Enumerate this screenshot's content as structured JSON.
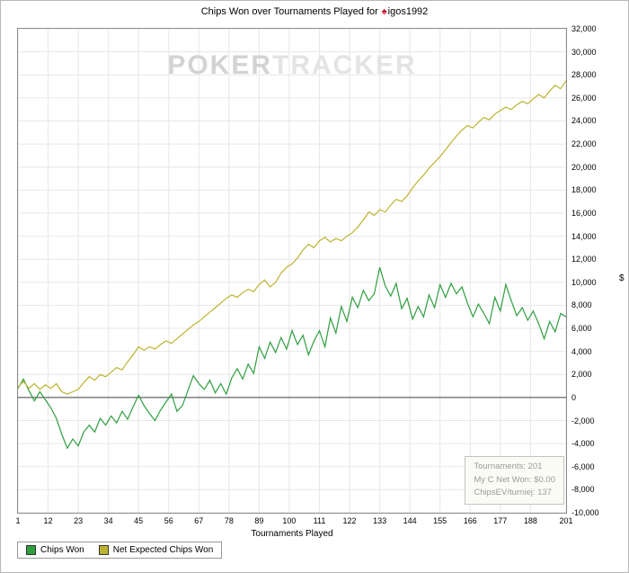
{
  "title": {
    "text": "Chips Won over Tournaments Played for",
    "logo_glyph": "♠",
    "player": "igos1992"
  },
  "watermark": {
    "poker": "POKER",
    "tracker": "TRACKER"
  },
  "axes": {
    "x_title": "Tournaments Played",
    "y_title": "$"
  },
  "stats_box": {
    "tournaments": "Tournaments: 201",
    "net_won": "My C Net Won: $0.00",
    "chips_ev": "ChipsEV/turniej: 137"
  },
  "colors": {
    "grid": "#e7e7e7",
    "zero_line": "#3c3c3c",
    "plot_border": "#8a8a8a",
    "chips_won": "#2f9e3f",
    "net_expected": "#bdb32e",
    "logo_red": "#c8102e",
    "stats_text": "#9a9a9a"
  },
  "chart_data": {
    "type": "line",
    "title": "Chips Won over Tournaments Played for igos1992",
    "xlabel": "Tournaments Played",
    "ylabel": "$",
    "grid": true,
    "legend_position": "bottom-left",
    "xlim": [
      1,
      201
    ],
    "ylim": [
      -10000,
      32000
    ],
    "ytick_step": 2000,
    "xticks": [
      1,
      12,
      23,
      34,
      45,
      56,
      67,
      78,
      89,
      100,
      111,
      122,
      133,
      144,
      155,
      166,
      177,
      188,
      201
    ],
    "x": [
      1,
      3,
      5,
      7,
      9,
      11,
      13,
      15,
      17,
      19,
      21,
      23,
      25,
      27,
      29,
      31,
      33,
      35,
      37,
      39,
      41,
      43,
      45,
      47,
      49,
      51,
      53,
      55,
      57,
      59,
      61,
      63,
      65,
      67,
      69,
      71,
      73,
      75,
      77,
      79,
      81,
      83,
      85,
      87,
      89,
      91,
      93,
      95,
      97,
      99,
      101,
      103,
      105,
      107,
      109,
      111,
      113,
      115,
      117,
      119,
      121,
      123,
      125,
      127,
      129,
      131,
      133,
      135,
      137,
      139,
      141,
      143,
      145,
      147,
      149,
      151,
      153,
      155,
      157,
      159,
      161,
      163,
      165,
      167,
      169,
      171,
      173,
      175,
      177,
      179,
      181,
      183,
      185,
      187,
      189,
      191,
      193,
      195,
      197,
      199,
      201
    ],
    "series": [
      {
        "name": "Chips Won",
        "color": "#2f9e3f",
        "values": [
          800,
          1600,
          600,
          -300,
          500,
          -200,
          -900,
          -1800,
          -3200,
          -4400,
          -3600,
          -4200,
          -3000,
          -2400,
          -3000,
          -1800,
          -2400,
          -1600,
          -2200,
          -1200,
          -1900,
          -800,
          200,
          -700,
          -1400,
          -2000,
          -1100,
          -400,
          300,
          -1200,
          -700,
          600,
          1900,
          1200,
          700,
          1500,
          400,
          1200,
          300,
          1700,
          2500,
          1600,
          2900,
          2100,
          4400,
          3400,
          4800,
          3900,
          5200,
          4200,
          5800,
          4600,
          5400,
          3700,
          4900,
          5800,
          4400,
          6900,
          5600,
          7900,
          6600,
          8700,
          7800,
          9300,
          8400,
          9000,
          11300,
          9700,
          8800,
          9900,
          7700,
          8600,
          6800,
          7900,
          7000,
          8900,
          7800,
          9800,
          8700,
          9900,
          9000,
          9600,
          8200,
          7000,
          8100,
          7300,
          6400,
          8700,
          7500,
          9800,
          8400,
          7100,
          7800,
          6700,
          7500,
          6400,
          5100,
          6600,
          5700,
          7300,
          7000
        ]
      },
      {
        "name": "Net Expected Chips Won",
        "color": "#bdb32e",
        "values": [
          900,
          1400,
          800,
          1200,
          700,
          1100,
          800,
          1200,
          500,
          300,
          500,
          700,
          1300,
          1800,
          1500,
          2000,
          1800,
          2200,
          2600,
          2400,
          3100,
          3700,
          4400,
          4100,
          4400,
          4200,
          4600,
          4900,
          4700,
          5100,
          5500,
          5900,
          6300,
          6600,
          7000,
          7400,
          7800,
          8200,
          8600,
          8900,
          8700,
          9100,
          9400,
          9200,
          9800,
          10200,
          9600,
          10000,
          10800,
          11300,
          11600,
          12100,
          12800,
          13300,
          13000,
          13600,
          13900,
          13500,
          13800,
          13600,
          14000,
          14300,
          14800,
          15400,
          16100,
          15800,
          16300,
          16100,
          16700,
          17200,
          17000,
          17500,
          18200,
          18800,
          19300,
          19900,
          20400,
          20900,
          21500,
          22100,
          22700,
          23200,
          23600,
          23400,
          23900,
          24300,
          24100,
          24600,
          24900,
          25200,
          25000,
          25400,
          25700,
          25500,
          25900,
          26300,
          26000,
          26600,
          27100,
          26800,
          27500
        ]
      }
    ]
  }
}
